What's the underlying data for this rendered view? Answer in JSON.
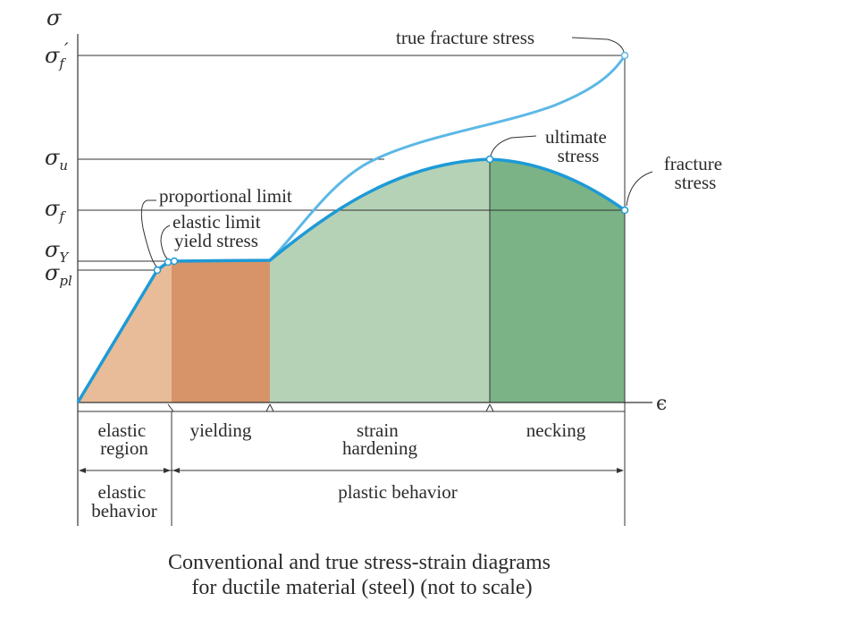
{
  "axes": {
    "y_symbol": "σ",
    "x_symbol": "ϵ",
    "y_ticks": [
      {
        "base": "σ",
        "sub": "f",
        "prime": "′"
      },
      {
        "base": "σ",
        "sub": "u",
        "prime": ""
      },
      {
        "base": "σ",
        "sub": "f",
        "prime": ""
      },
      {
        "base": "σ",
        "sub": "Y",
        "prime": ""
      },
      {
        "base": "σ",
        "sub": "pl",
        "prime": ""
      }
    ]
  },
  "annotations": {
    "true_fracture_stress": "true fracture stress",
    "ultimate_stress": [
      "ultimate",
      "stress"
    ],
    "fracture_stress": [
      "fracture",
      "stress"
    ],
    "proportional_limit": "proportional limit",
    "elastic_limit": "elastic limit",
    "yield_stress": "yield stress"
  },
  "regions": {
    "elastic_region": [
      "elastic",
      "region"
    ],
    "yielding": [
      "yielding"
    ],
    "strain_hardening": [
      "strain",
      "hardening"
    ],
    "necking": [
      "necking"
    ]
  },
  "behaviors": {
    "elastic_behavior": [
      "elastic",
      "behavior"
    ],
    "plastic_behavior": [
      "plastic behavior"
    ]
  },
  "caption": [
    "Conventional and true stress-strain diagrams",
    "for ductile material (steel) (not to scale)"
  ],
  "colors": {
    "curve": "#1e9ad6",
    "true_curve": "#5cb8e6",
    "elastic_fill": "#e8bc98",
    "yielding_fill": "#d69468",
    "hardening_fill": "#b5d2b6",
    "necking_fill": "#7bb386",
    "line": "#333333"
  }
}
